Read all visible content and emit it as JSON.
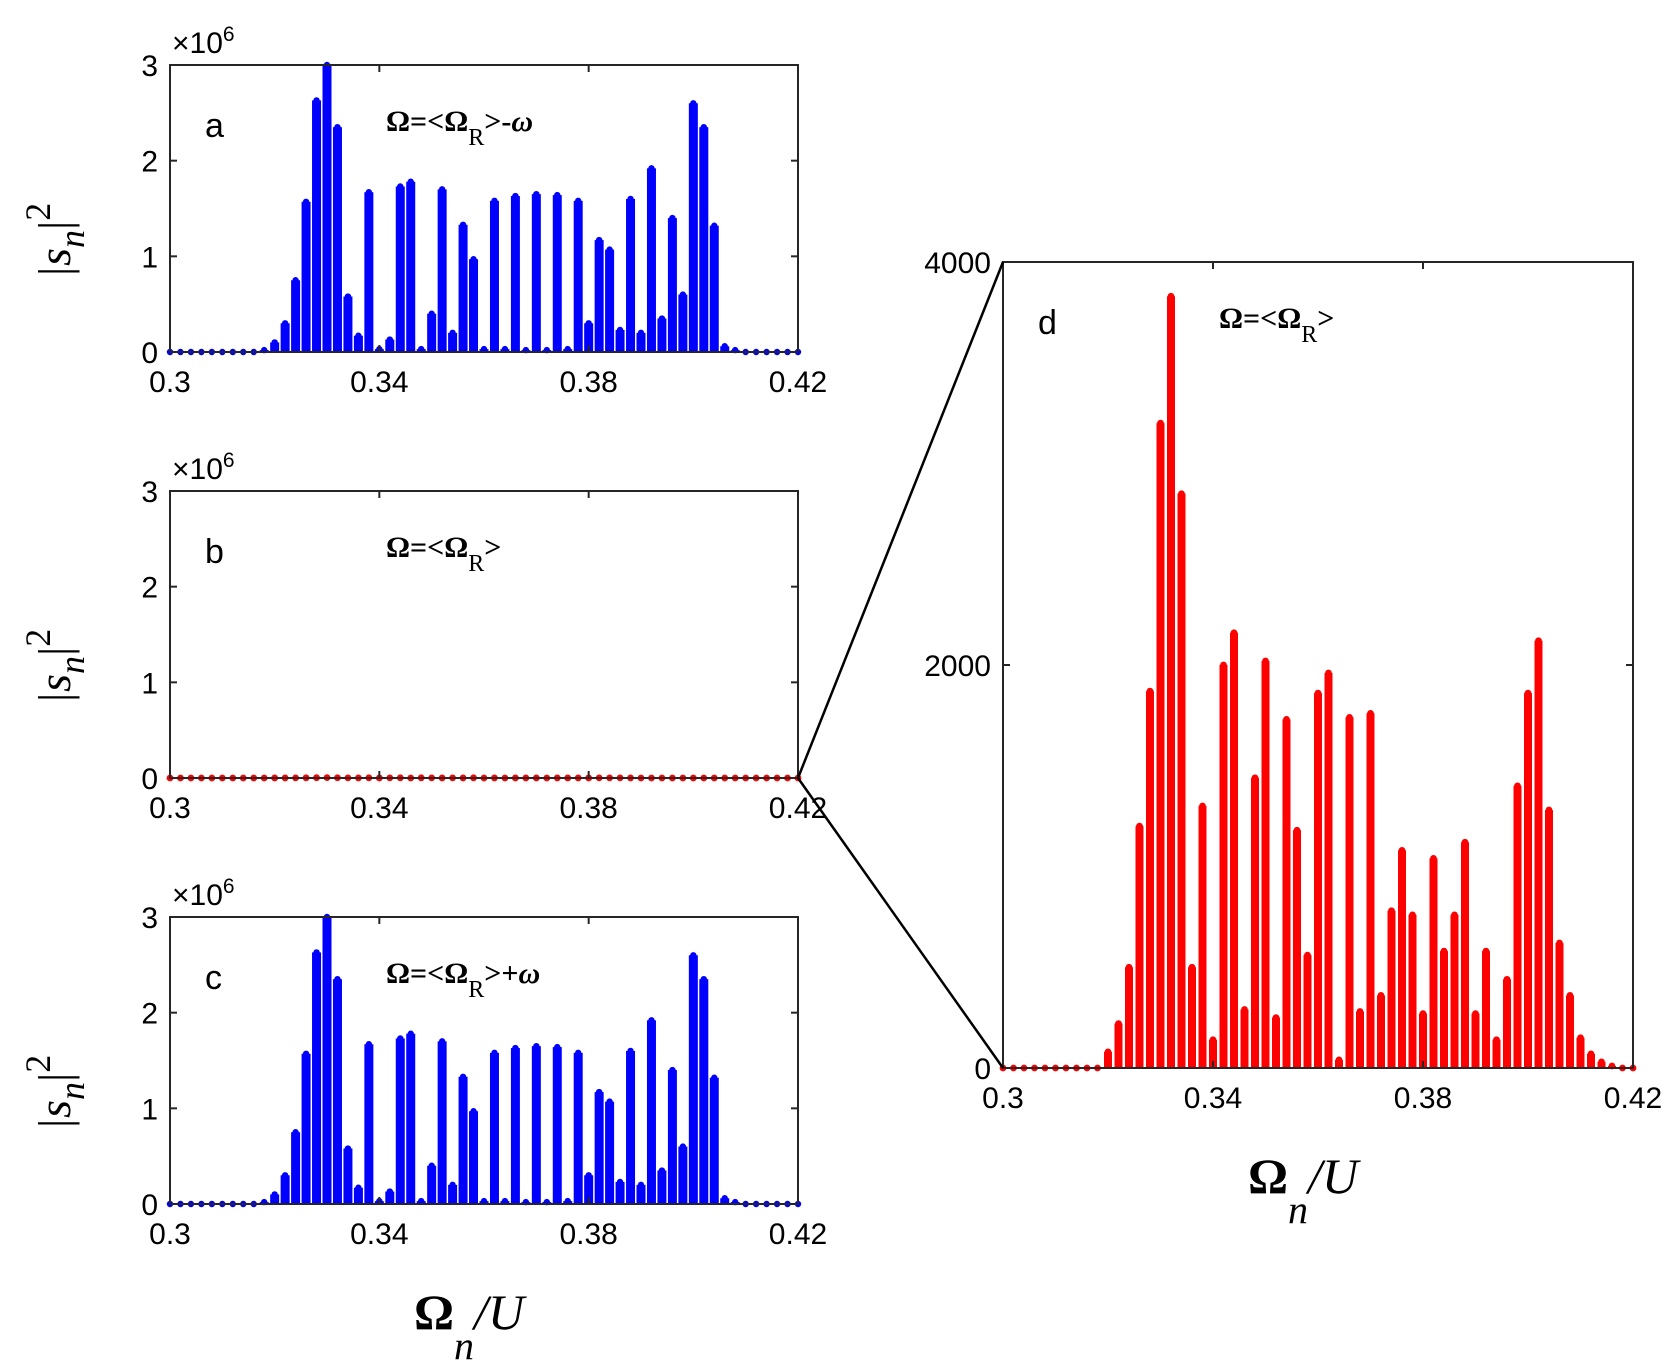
{
  "chart_data": [
    {
      "id": "a",
      "type": "bar",
      "panel_letter": "a",
      "annotation": {
        "lhs": "Ω=<Ω",
        "sub": "R",
        "rhs": ">-",
        "omega": "ω"
      },
      "ylabel": {
        "base": "|s",
        "sub": "n",
        "sup": "2",
        "close": "|"
      },
      "xlabel": null,
      "multiplier": {
        "prefix": "×10",
        "exp": "6"
      },
      "xlim": [
        0.3,
        0.42
      ],
      "ylim": [
        0,
        3
      ],
      "xticks": [
        "0.3",
        "0.34",
        "0.38",
        "0.42"
      ],
      "yticks": [
        "0",
        "1",
        "2",
        "3"
      ],
      "color": "#0000ff",
      "x0": 0.3,
      "dx": 0.002,
      "values": [
        0,
        0,
        0,
        0,
        0,
        0,
        0,
        0,
        0,
        0.02,
        0.1,
        0.3,
        0.75,
        1.57,
        2.63,
        3.0,
        2.35,
        0.58,
        0.17,
        1.67,
        0.03,
        0.13,
        1.73,
        1.78,
        0.03,
        0.4,
        1.7,
        0.2,
        1.33,
        0.97,
        0.03,
        1.58,
        0.03,
        1.63,
        0.02,
        1.65,
        0.02,
        1.64,
        0.03,
        1.58,
        0.3,
        1.17,
        1.07,
        0.23,
        1.6,
        0.2,
        1.92,
        0.35,
        1.4,
        0.6,
        2.6,
        2.35,
        1.32,
        0.06,
        0.02,
        0,
        0,
        0,
        0,
        0,
        0,
        0
      ]
    },
    {
      "id": "b",
      "type": "bar",
      "panel_letter": "b",
      "annotation": {
        "lhs": "Ω=<Ω",
        "sub": "R",
        "rhs": ">",
        "omega": ""
      },
      "ylabel": {
        "base": "|s",
        "sub": "n",
        "sup": "2",
        "close": "|"
      },
      "xlabel": null,
      "multiplier": {
        "prefix": "×10",
        "exp": "6"
      },
      "xlim": [
        0.3,
        0.42
      ],
      "ylim": [
        0,
        3
      ],
      "xticks": [
        "0.3",
        "0.34",
        "0.38",
        "0.42"
      ],
      "yticks": [
        "0",
        "1",
        "2",
        "3"
      ],
      "color": "#ff0000",
      "x0": 0.3,
      "dx": 0.002,
      "values": [
        0,
        0,
        0,
        0,
        0,
        0,
        0,
        0,
        0,
        0,
        0.0004,
        0.0008,
        0.0013,
        0.0018,
        0.0032,
        0.0038,
        0.0028,
        0.0012,
        0.0008,
        0.002,
        0.0004,
        0.0014,
        0.0021,
        0.0002,
        0.0019,
        0.001,
        0.0006,
        0.0014,
        0.0007,
        0.0019,
        0.0003,
        0.0007,
        0.0002,
        0.0005,
        0.0004,
        0.0005,
        0.0003,
        0.0008,
        0.0006,
        0.0009,
        0.0004,
        0.0012,
        0.0014,
        0.001,
        0.0007,
        0.0002,
        0,
        0,
        0,
        0,
        0,
        0,
        0,
        0,
        0,
        0,
        0,
        0,
        0,
        0,
        0
      ]
    },
    {
      "id": "c",
      "type": "bar",
      "panel_letter": "c",
      "annotation": {
        "lhs": "Ω=<Ω",
        "sub": "R",
        "rhs": ">+",
        "omega": "ω"
      },
      "ylabel": {
        "base": "|s",
        "sub": "n",
        "sup": "2",
        "close": "|"
      },
      "xlabel": {
        "main": "Ω",
        "sub": "n",
        "rest": "/U"
      },
      "multiplier": {
        "prefix": "×10",
        "exp": "6"
      },
      "xlim": [
        0.3,
        0.42
      ],
      "ylim": [
        0,
        3
      ],
      "xticks": [
        "0.3",
        "0.34",
        "0.38",
        "0.42"
      ],
      "yticks": [
        "0",
        "1",
        "2",
        "3"
      ],
      "color": "#0000ff",
      "x0": 0.3,
      "dx": 0.002,
      "values": [
        0,
        0,
        0,
        0,
        0,
        0,
        0,
        0,
        0,
        0.02,
        0.1,
        0.3,
        0.75,
        1.57,
        2.63,
        3.0,
        2.35,
        0.58,
        0.17,
        1.67,
        0.03,
        0.13,
        1.73,
        1.78,
        0.03,
        0.4,
        1.7,
        0.2,
        1.33,
        0.97,
        0.03,
        1.58,
        0.03,
        1.63,
        0.02,
        1.65,
        0.02,
        1.64,
        0.03,
        1.58,
        0.3,
        1.17,
        1.07,
        0.23,
        1.6,
        0.2,
        1.92,
        0.35,
        1.4,
        0.6,
        2.6,
        2.35,
        1.32,
        0.06,
        0.02,
        0,
        0,
        0,
        0,
        0,
        0,
        0
      ]
    },
    {
      "id": "d",
      "type": "bar",
      "panel_letter": "d",
      "annotation": {
        "lhs": "Ω=<Ω",
        "sub": "R",
        "rhs": ">",
        "omega": ""
      },
      "ylabel": null,
      "xlabel": {
        "main": "Ω",
        "sub": "n",
        "rest": "/U"
      },
      "multiplier": null,
      "xlim": [
        0.3,
        0.42
      ],
      "ylim": [
        0,
        4000
      ],
      "xticks": [
        "0.3",
        "0.34",
        "0.38",
        "0.42"
      ],
      "yticks": [
        "0",
        "2000",
        "4000"
      ],
      "color": "#ff0000",
      "x0": 0.3,
      "dx": 0.002,
      "values": [
        0,
        0,
        0,
        0,
        0,
        0,
        0,
        0,
        0,
        0,
        80,
        220,
        500,
        1200,
        1870,
        3200,
        3830,
        2850,
        500,
        1300,
        140,
        2000,
        2160,
        290,
        1440,
        2020,
        250,
        1730,
        1180,
        560,
        1860,
        1960,
        40,
        1740,
        280,
        1760,
        360,
        780,
        1080,
        760,
        270,
        1040,
        580,
        760,
        1120,
        270,
        580,
        140,
        440,
        1400,
        1860,
        2120,
        1280,
        620,
        360,
        150,
        70,
        30,
        10,
        0,
        0,
        0
      ]
    }
  ],
  "zoom_connector": {
    "from": "b",
    "to": "d"
  }
}
